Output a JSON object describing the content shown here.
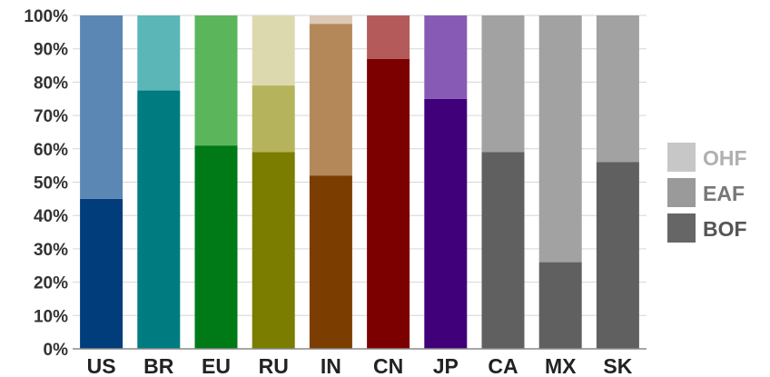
{
  "chart_data": {
    "type": "bar",
    "stacked": true,
    "categories": [
      "US",
      "BR",
      "EU",
      "RU",
      "IN",
      "CN",
      "JP",
      "CA",
      "MX",
      "SK"
    ],
    "ylim": [
      0,
      100
    ],
    "y_ticks": [
      "0%",
      "10%",
      "20%",
      "30%",
      "40%",
      "50%",
      "60%",
      "70%",
      "80%",
      "90%",
      "100%"
    ],
    "grid": true,
    "legend_position": "right",
    "series": [
      {
        "name": "BOF",
        "values": [
          45,
          77.5,
          61,
          59,
          52,
          87,
          75,
          59,
          26,
          56
        ]
      },
      {
        "name": "EAF",
        "values": [
          55,
          22.5,
          39,
          20,
          45.5,
          13,
          25,
          41,
          74,
          44
        ]
      },
      {
        "name": "OHF",
        "values": [
          0,
          0,
          0,
          21,
          2.5,
          0,
          0,
          0,
          0,
          0
        ]
      }
    ],
    "bar_colors": [
      [
        "#003d7a",
        "#5b87b5",
        "#cccccc"
      ],
      [
        "#007b80",
        "#5bb7b7",
        "#cccccc"
      ],
      [
        "#007a16",
        "#5bb65b",
        "#cccccc"
      ],
      [
        "#7a7d00",
        "#b5b45c",
        "#ddd9af"
      ],
      [
        "#7b3d00",
        "#b58859",
        "#ddc9b8"
      ],
      [
        "#7d0000",
        "#b55a5a",
        "#cccccc"
      ],
      [
        "#3f007a",
        "#875bb5",
        "#cccccc"
      ],
      [
        "#606060",
        "#a2a2a2",
        "#cccccc"
      ],
      [
        "#606060",
        "#a2a2a2",
        "#cccccc"
      ],
      [
        "#606060",
        "#a2a2a2",
        "#cccccc"
      ]
    ],
    "legend": [
      {
        "label": "OHF",
        "color": "#c7c7c7",
        "text_color": "#b0b0b0"
      },
      {
        "label": "EAF",
        "color": "#9a9a9a",
        "text_color": "#777777"
      },
      {
        "label": "BOF",
        "color": "#666666",
        "text_color": "#555555"
      }
    ]
  }
}
